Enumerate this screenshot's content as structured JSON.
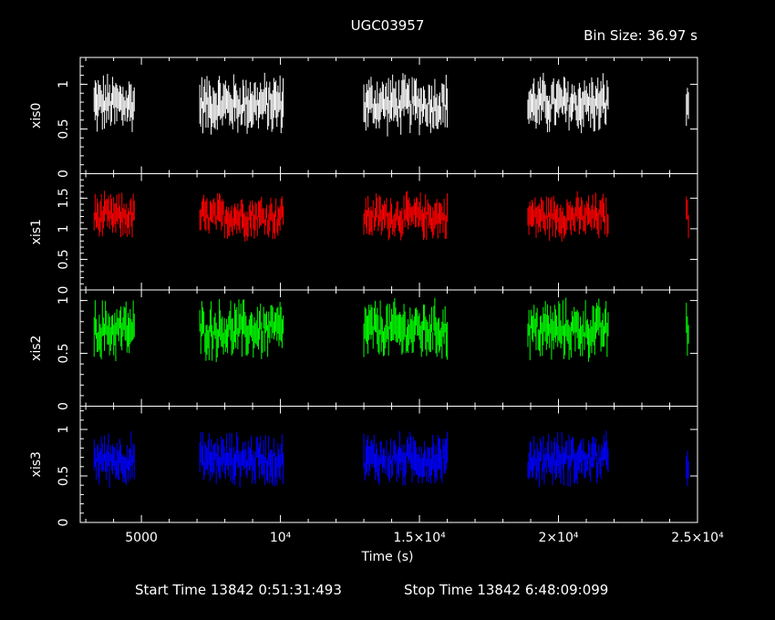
{
  "chart_data": {
    "type": "line",
    "title": "UGC03957",
    "bin_size_label": "Bin Size: 36.97 s",
    "xlabel": "Time (s)",
    "xlim": [
      2800,
      25000
    ],
    "x_ticks": [
      {
        "value": 5000,
        "label": "5000"
      },
      {
        "value": 10000,
        "label": "10^4"
      },
      {
        "value": 15000,
        "label": "1.5×10^4"
      },
      {
        "value": 20000,
        "label": "2×10^4"
      },
      {
        "value": 25000,
        "label": "2.5×10^4"
      }
    ],
    "gti_segments": [
      [
        3300,
        4750
      ],
      [
        7100,
        10100
      ],
      [
        13000,
        16000
      ],
      [
        18900,
        21800
      ],
      [
        24600,
        24700
      ]
    ],
    "series": [
      {
        "name": "xis0",
        "color": "#ffffff",
        "ylim": [
          0,
          1.3
        ],
        "y_ticks": [
          0,
          0.5,
          1
        ],
        "mean": 0.78,
        "spread": 0.28
      },
      {
        "name": "xis1",
        "color": "#ff0000",
        "ylim": [
          0,
          1.9
        ],
        "y_ticks": [
          0,
          0.5,
          1,
          1.5
        ],
        "mean": 1.2,
        "spread": 0.32
      },
      {
        "name": "xis2",
        "color": "#00ff00",
        "ylim": [
          0,
          1.1
        ],
        "y_ticks": [
          0,
          0.5,
          1
        ],
        "mean": 0.72,
        "spread": 0.24
      },
      {
        "name": "xis3",
        "color": "#0000ff",
        "ylim": [
          0,
          1.25
        ],
        "y_ticks": [
          0,
          0.5,
          1
        ],
        "mean": 0.68,
        "spread": 0.24
      }
    ],
    "grid": false,
    "legend": "none"
  },
  "footer": {
    "start_label": "Start Time 13842  0:51:31:493",
    "stop_label": "Stop Time 13842  6:48:09:099"
  }
}
